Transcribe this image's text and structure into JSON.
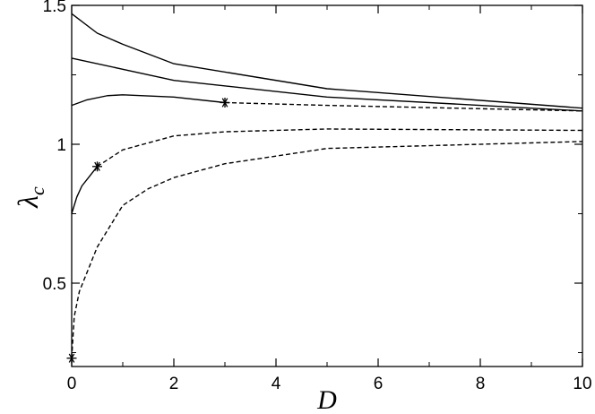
{
  "chart_data": {
    "type": "line",
    "title": "",
    "xlabel": "D",
    "ylabel": "λ",
    "ylabel_subscript": "c",
    "xlim": [
      0,
      10
    ],
    "ylim": [
      0.2,
      1.5
    ],
    "x_ticks": [
      0,
      2,
      4,
      6,
      8,
      10
    ],
    "x_tick_labels": [
      "0",
      "2",
      "4",
      "6",
      "8",
      "10"
    ],
    "y_ticks": [
      0.5,
      1.0,
      1.5
    ],
    "y_tick_labels": [
      "0.5",
      "1",
      "1.5"
    ],
    "grid": false,
    "legend": "none",
    "series": [
      {
        "style": "solid",
        "points": [
          [
            0,
            1.47
          ],
          [
            0.5,
            1.4
          ],
          [
            1,
            1.36
          ],
          [
            2,
            1.29
          ],
          [
            5,
            1.2
          ],
          [
            10,
            1.13
          ]
        ]
      },
      {
        "style": "solid",
        "points": [
          [
            0,
            1.31
          ],
          [
            1,
            1.27
          ],
          [
            2,
            1.23
          ],
          [
            5,
            1.17
          ],
          [
            10,
            1.12
          ]
        ]
      },
      {
        "style": "solid",
        "points": [
          [
            0,
            1.14
          ],
          [
            0.3,
            1.16
          ],
          [
            0.7,
            1.175
          ],
          [
            1,
            1.178
          ],
          [
            2,
            1.17
          ],
          [
            3,
            1.15
          ]
        ]
      },
      {
        "style": "dashed",
        "points": [
          [
            3,
            1.15
          ],
          [
            5,
            1.14
          ],
          [
            10,
            1.12
          ]
        ]
      },
      {
        "style": "solid",
        "points": [
          [
            0,
            0.75
          ],
          [
            0.1,
            0.81
          ],
          [
            0.2,
            0.85
          ],
          [
            0.35,
            0.885
          ],
          [
            0.5,
            0.92
          ]
        ]
      },
      {
        "style": "dashed",
        "points": [
          [
            0.5,
            0.92
          ],
          [
            1,
            0.98
          ],
          [
            2,
            1.03
          ],
          [
            3,
            1.045
          ],
          [
            5,
            1.055
          ],
          [
            10,
            1.05
          ]
        ]
      },
      {
        "style": "dashed",
        "points": [
          [
            0,
            0.23
          ],
          [
            0.05,
            0.38
          ],
          [
            0.15,
            0.47
          ],
          [
            0.5,
            0.63
          ],
          [
            1,
            0.78
          ],
          [
            1.5,
            0.84
          ],
          [
            2,
            0.88
          ],
          [
            3,
            0.93
          ],
          [
            5,
            0.985
          ],
          [
            10,
            1.01
          ]
        ]
      }
    ],
    "markers": [
      {
        "shape": "asterisk",
        "x": 3,
        "y": 1.15
      },
      {
        "shape": "asterisk",
        "x": 0.5,
        "y": 0.92
      },
      {
        "shape": "asterisk",
        "x": 0,
        "y": 0.23
      }
    ]
  }
}
